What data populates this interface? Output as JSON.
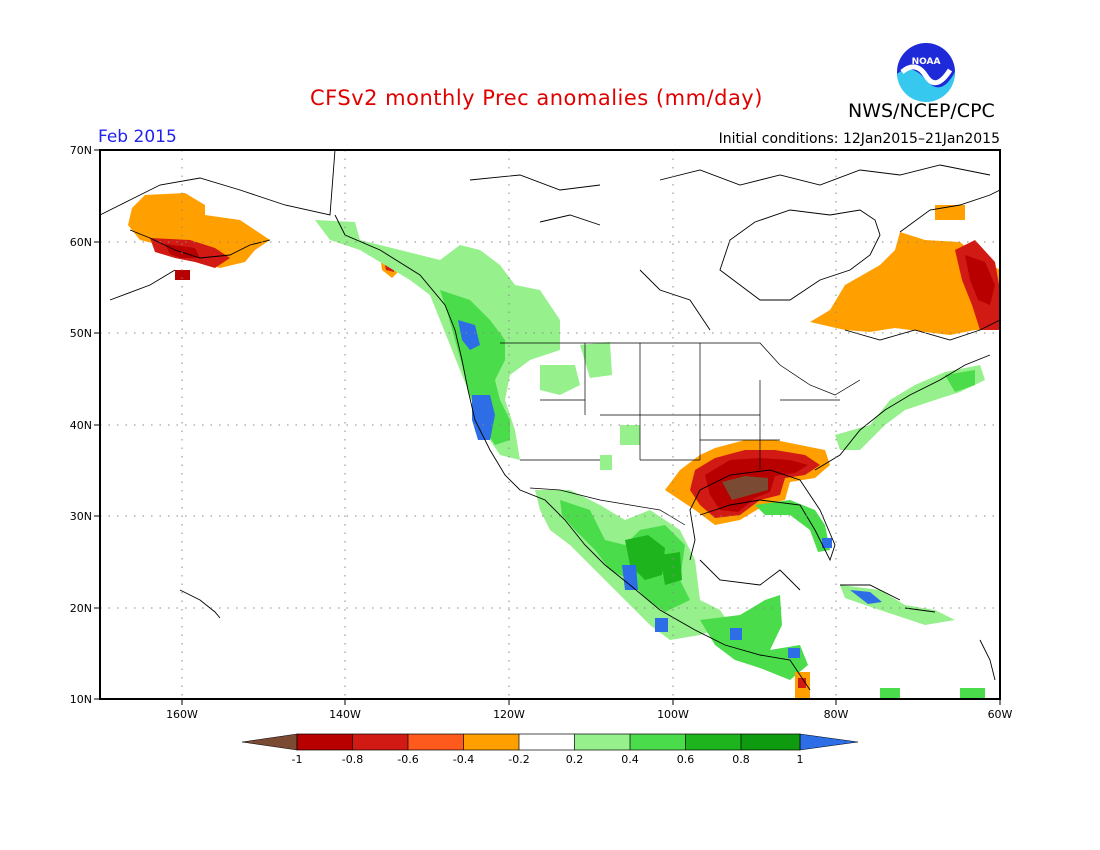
{
  "header": {
    "title": "CFSv2 monthly Prec anomalies (mm/day)",
    "month": "Feb 2015",
    "initial_conditions": "Initial conditions: 12Jan2015–21Jan2015",
    "agency": "NWS/NCEP/CPC",
    "logo_text": "NOAA",
    "logo_icon": "noaa-logo-icon"
  },
  "map": {
    "lat_labels": [
      "70N",
      "60N",
      "50N",
      "40N",
      "30N",
      "20N",
      "10N"
    ],
    "lon_labels": [
      "160W",
      "140W",
      "120W",
      "100W",
      "80W",
      "60W"
    ],
    "lat_range": [
      10,
      70
    ],
    "lon_range": [
      -170,
      -60
    ],
    "grid": "dotted"
  },
  "colorbar": {
    "labels": [
      "-1",
      "-0.8",
      "-0.6",
      "-0.4",
      "-0.2",
      "0.2",
      "0.4",
      "0.6",
      "0.8",
      "1"
    ],
    "colors": [
      "#7a4a32",
      "#b80000",
      "#d21a14",
      "#ff5a1e",
      "#ffa000",
      "#ffffff",
      "#96f08c",
      "#4bdc4b",
      "#1eb41e",
      "#0f9b0f",
      "#2d6ee6"
    ]
  },
  "regions": [
    {
      "name": "alaska-dry-orange",
      "color": "#ffa000"
    },
    {
      "name": "alaska-dry-red",
      "color": "#d21a14"
    },
    {
      "name": "alaska-dry-darkred",
      "color": "#b80000"
    },
    {
      "name": "pacific-nw-wet-light",
      "color": "#96f08c"
    },
    {
      "name": "pacific-nw-wet-mid",
      "color": "#4bdc4b"
    },
    {
      "name": "pacific-nw-wet-blue",
      "color": "#2d6ee6"
    },
    {
      "name": "southeast-dry-orange",
      "color": "#ffa000"
    },
    {
      "name": "southeast-dry-red",
      "color": "#d21a14"
    },
    {
      "name": "southeast-dry-darkred",
      "color": "#b80000"
    },
    {
      "name": "southeast-dry-brown",
      "color": "#7a4a32"
    },
    {
      "name": "quebec-dry-orange",
      "color": "#ffa000"
    },
    {
      "name": "labrador-dry-red",
      "color": "#b80000"
    },
    {
      "name": "mexico-wet-green",
      "color": "#4bdc4b"
    },
    {
      "name": "mexico-wet-dark",
      "color": "#1eb41e"
    },
    {
      "name": "mexico-wet-blue",
      "color": "#2d6ee6"
    },
    {
      "name": "florida-wet",
      "color": "#4bdc4b"
    },
    {
      "name": "caribbean-wet",
      "color": "#2d6ee6"
    },
    {
      "name": "northeast-wet",
      "color": "#96f08c"
    }
  ]
}
